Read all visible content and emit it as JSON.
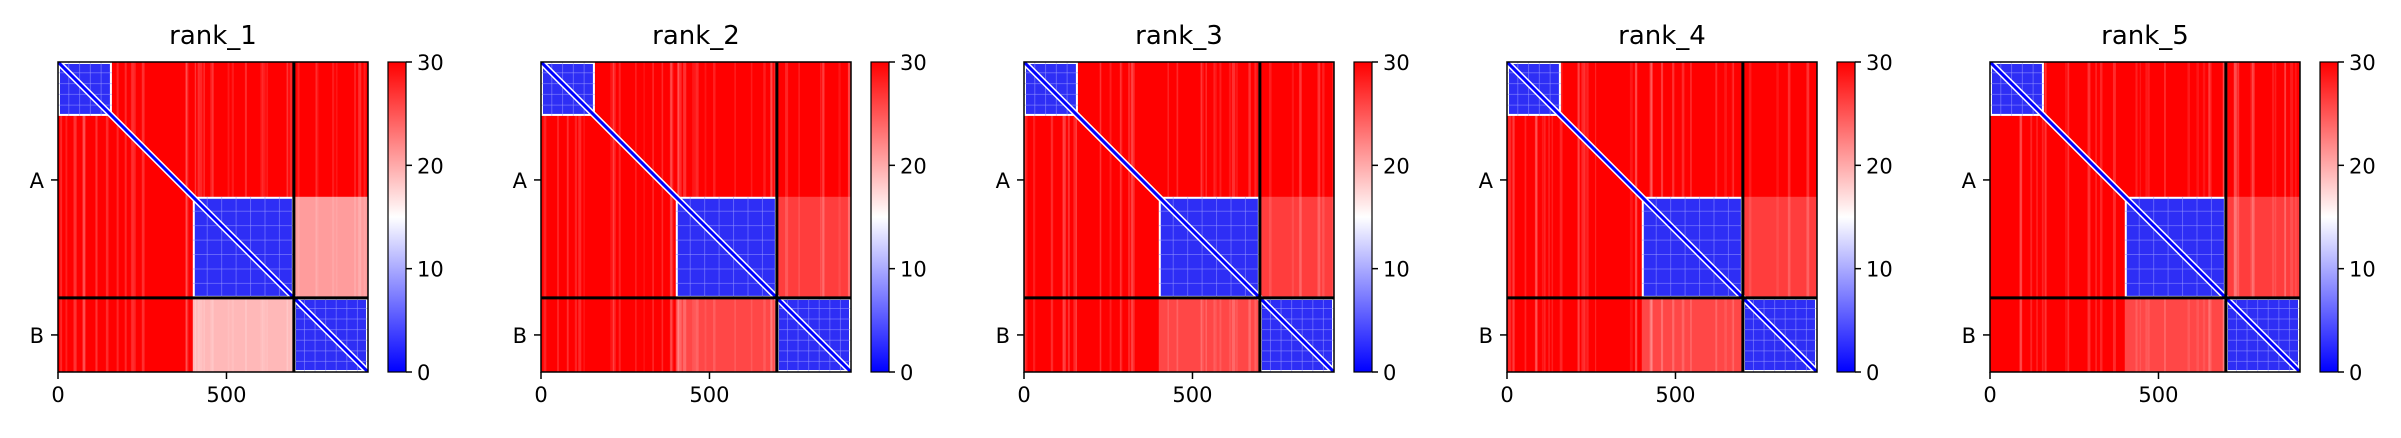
{
  "chart_data": [
    {
      "type": "heatmap",
      "title": "rank_1",
      "x_ticks": [
        "0",
        "500"
      ],
      "y_ticks": [
        "A",
        "B"
      ],
      "colorbar_ticks": [
        "0",
        "10",
        "20",
        "30"
      ],
      "value_range": [
        0,
        30
      ],
      "colormap": [
        "#0000ff",
        "#ffffff",
        "#ff0000"
      ],
      "n_residues": 920,
      "chain_boundary": 700,
      "block1": [
        0,
        160
      ],
      "block2": [
        400,
        700
      ],
      "block3": [
        700,
        920
      ],
      "offdiag_level": "light",
      "offdiag_range": [
        400,
        700
      ]
    },
    {
      "type": "heatmap",
      "title": "rank_2",
      "x_ticks": [
        "0",
        "500"
      ],
      "y_ticks": [
        "A",
        "B"
      ],
      "colorbar_ticks": [
        "0",
        "10",
        "20",
        "30"
      ],
      "value_range": [
        0,
        30
      ],
      "colormap": [
        "#0000ff",
        "#ffffff",
        "#ff0000"
      ],
      "n_residues": 920,
      "chain_boundary": 700,
      "block1": [
        0,
        160
      ],
      "block2": [
        400,
        700
      ],
      "block3": [
        700,
        920
      ],
      "offdiag_level": "faint",
      "offdiag_range": [
        400,
        700
      ]
    },
    {
      "type": "heatmap",
      "title": "rank_3",
      "x_ticks": [
        "0",
        "500"
      ],
      "y_ticks": [
        "A",
        "B"
      ],
      "colorbar_ticks": [
        "0",
        "10",
        "20",
        "30"
      ],
      "value_range": [
        0,
        30
      ],
      "colormap": [
        "#0000ff",
        "#ffffff",
        "#ff0000"
      ],
      "n_residues": 920,
      "chain_boundary": 700,
      "block1": [
        0,
        160
      ],
      "block2": [
        400,
        700
      ],
      "block3": [
        700,
        920
      ],
      "offdiag_level": "faint",
      "offdiag_range": [
        400,
        700
      ]
    },
    {
      "type": "heatmap",
      "title": "rank_4",
      "x_ticks": [
        "0",
        "500"
      ],
      "y_ticks": [
        "A",
        "B"
      ],
      "colorbar_ticks": [
        "0",
        "10",
        "20",
        "30"
      ],
      "value_range": [
        0,
        30
      ],
      "colormap": [
        "#0000ff",
        "#ffffff",
        "#ff0000"
      ],
      "n_residues": 920,
      "chain_boundary": 700,
      "block1": [
        0,
        160
      ],
      "block2": [
        400,
        700
      ],
      "block3": [
        700,
        920
      ],
      "offdiag_level": "faint",
      "offdiag_range": [
        400,
        700
      ]
    },
    {
      "type": "heatmap",
      "title": "rank_5",
      "x_ticks": [
        "0",
        "500"
      ],
      "y_ticks": [
        "A",
        "B"
      ],
      "colorbar_ticks": [
        "0",
        "10",
        "20",
        "30"
      ],
      "value_range": [
        0,
        30
      ],
      "colormap": [
        "#0000ff",
        "#ffffff",
        "#ff0000"
      ],
      "n_residues": 920,
      "chain_boundary": 700,
      "block1": [
        0,
        160
      ],
      "block2": [
        400,
        700
      ],
      "block3": [
        700,
        920
      ],
      "offdiag_level": "faint",
      "offdiag_range": [
        400,
        700
      ]
    }
  ]
}
